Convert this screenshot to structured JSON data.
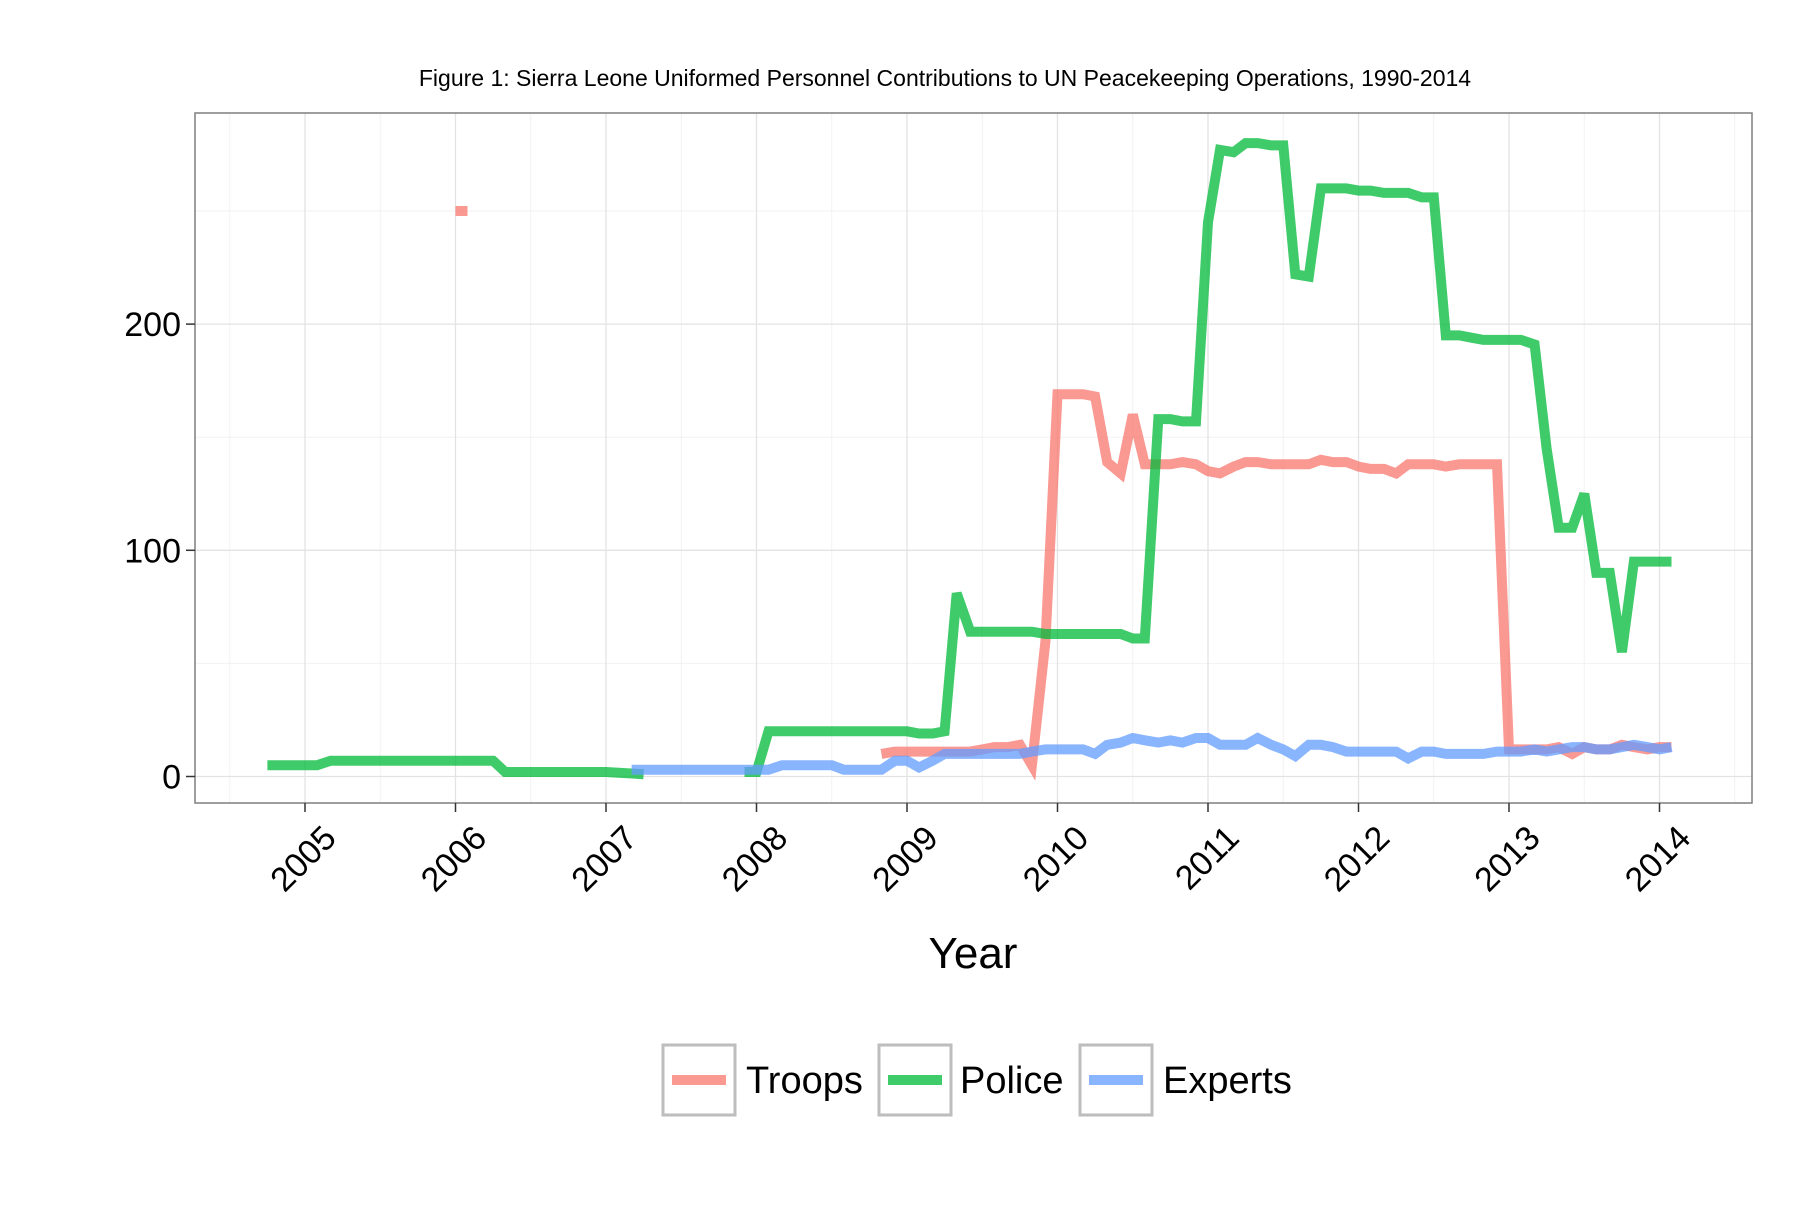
{
  "chart_data": {
    "type": "line",
    "title": "Figure 1: Sierra Leone Uniformed Personnel Contributions to UN Peacekeeping Operations, 1990-2014",
    "xlabel": "Year",
    "ylabel": "",
    "x_ticks": [
      "2005",
      "2006",
      "2007",
      "2008",
      "2009",
      "2010",
      "2011",
      "2012",
      "2013",
      "2014"
    ],
    "y_ticks": [
      0,
      100,
      200
    ],
    "xlim": [
      2004.5,
      2014.65
    ],
    "ylim": [
      -12,
      295
    ],
    "grid": true,
    "legend_position": "bottom",
    "colors": {
      "Troops": "#F8766D",
      "Police": "#00BA38",
      "Experts": "#619CFF"
    },
    "series": [
      {
        "name": "Troops",
        "x": [
          2008.83,
          2008.92,
          2009.0,
          2009.08,
          2009.17,
          2009.25,
          2009.33,
          2009.42,
          2009.5,
          2009.58,
          2009.67,
          2009.75,
          2009.83,
          2009.92,
          2010.0,
          2010.08,
          2010.17,
          2010.25,
          2010.33,
          2010.42,
          2010.5,
          2010.58,
          2010.67,
          2010.75,
          2010.83,
          2010.92,
          2011.0,
          2011.08,
          2011.17,
          2011.25,
          2011.33,
          2011.42,
          2011.5,
          2011.58,
          2011.67,
          2011.75,
          2011.83,
          2011.92,
          2012.0,
          2012.08,
          2012.17,
          2012.25,
          2012.33,
          2012.42,
          2012.5,
          2012.58,
          2012.67,
          2012.75,
          2012.83,
          2012.92,
          2013.0,
          2013.08,
          2013.17,
          2013.25,
          2013.33,
          2013.42,
          2013.5,
          2013.58,
          2013.67,
          2013.75,
          2013.83,
          2013.92,
          2014.0,
          2014.08
        ],
        "values": [
          10,
          11,
          11,
          11,
          11,
          11,
          11,
          11,
          12,
          13,
          13,
          14,
          5,
          60,
          169,
          169,
          169,
          168,
          139,
          134,
          160,
          138,
          138,
          138,
          139,
          138,
          135,
          134,
          137,
          139,
          139,
          138,
          138,
          138,
          138,
          140,
          139,
          139,
          137,
          136,
          136,
          134,
          138,
          138,
          138,
          137,
          138,
          138,
          138,
          138,
          12,
          12,
          12,
          12,
          13,
          10,
          13,
          12,
          12,
          14,
          13,
          12,
          13,
          13
        ]
      },
      {
        "name": "Troops",
        "x": [
          2006.0,
          2006.08
        ],
        "values": [
          250,
          250
        ]
      },
      {
        "name": "Police",
        "x": [
          2004.75,
          2004.83,
          2005.0,
          2005.08,
          2005.17,
          2005.25,
          2005.5,
          2005.75,
          2006.0,
          2006.17,
          2006.25,
          2006.33,
          2006.42,
          2006.67,
          2007.0,
          2007.25
        ],
        "values": [
          5,
          5,
          5,
          5,
          7,
          7,
          7,
          7,
          7,
          7,
          7,
          2,
          2,
          2,
          2,
          1
        ]
      },
      {
        "name": "Police",
        "x": [
          2007.92,
          2008.0,
          2008.08,
          2008.17,
          2008.5,
          2008.75,
          2009.0,
          2009.08,
          2009.17,
          2009.25,
          2009.33,
          2009.42,
          2009.5,
          2009.58,
          2009.67,
          2009.75,
          2009.83,
          2009.92,
          2010.0,
          2010.08,
          2010.17,
          2010.25,
          2010.33,
          2010.42,
          2010.5,
          2010.58,
          2010.67,
          2010.75,
          2010.83,
          2010.92,
          2011.0,
          2011.08,
          2011.17,
          2011.25,
          2011.33,
          2011.42,
          2011.5,
          2011.58,
          2011.67,
          2011.75,
          2011.83,
          2011.92,
          2012.0,
          2012.08,
          2012.17,
          2012.25,
          2012.33,
          2012.42,
          2012.5,
          2012.58,
          2012.67,
          2012.75,
          2012.83,
          2012.92,
          2013.0,
          2013.08,
          2013.17,
          2013.25,
          2013.33,
          2013.42,
          2013.5,
          2013.58,
          2013.67,
          2013.75,
          2013.83,
          2013.92,
          2014.0,
          2014.08
        ],
        "values": [
          2,
          2,
          20,
          20,
          20,
          20,
          20,
          19,
          19,
          20,
          81,
          64,
          64,
          64,
          64,
          64,
          64,
          63,
          63,
          63,
          63,
          63,
          63,
          63,
          61,
          61,
          158,
          158,
          157,
          157,
          245,
          277,
          276,
          280,
          280,
          279,
          279,
          222,
          221,
          260,
          260,
          260,
          259,
          259,
          258,
          258,
          258,
          256,
          256,
          195,
          195,
          194,
          193,
          193,
          193,
          193,
          191,
          145,
          110,
          110,
          125,
          90,
          90,
          55,
          95,
          95,
          95,
          95
        ]
      },
      {
        "name": "Experts",
        "x": [
          2007.17,
          2007.5,
          2007.75,
          2007.92,
          2008.0,
          2008.08,
          2008.17,
          2008.33,
          2008.42,
          2008.5,
          2008.58,
          2008.67,
          2008.75,
          2008.83,
          2008.92,
          2009.0,
          2009.08,
          2009.17,
          2009.25,
          2009.33,
          2009.42,
          2009.5,
          2009.58,
          2009.67,
          2009.75,
          2009.83,
          2009.92,
          2010.0,
          2010.08,
          2010.17,
          2010.25,
          2010.33,
          2010.42,
          2010.5,
          2010.58,
          2010.67,
          2010.75,
          2010.83,
          2010.92,
          2011.0,
          2011.08,
          2011.17,
          2011.25,
          2011.33,
          2011.42,
          2011.5,
          2011.58,
          2011.67,
          2011.75,
          2011.83,
          2011.92,
          2012.0,
          2012.08,
          2012.17,
          2012.25,
          2012.33,
          2012.42,
          2012.5,
          2012.58,
          2012.67,
          2012.75,
          2012.83,
          2012.92,
          2013.0,
          2013.08,
          2013.17,
          2013.25,
          2013.33,
          2013.42,
          2013.5,
          2013.58,
          2013.67,
          2013.75,
          2013.83,
          2013.92,
          2014.0,
          2014.08
        ],
        "values": [
          3,
          3,
          3,
          3,
          3,
          3,
          5,
          5,
          5,
          5,
          3,
          3,
          3,
          3,
          7,
          7,
          4,
          7,
          10,
          10,
          10,
          10,
          10,
          10,
          10,
          11,
          12,
          12,
          12,
          12,
          10,
          14,
          15,
          17,
          16,
          15,
          16,
          15,
          17,
          17,
          14,
          14,
          14,
          17,
          14,
          12,
          9,
          14,
          14,
          13,
          11,
          11,
          11,
          11,
          11,
          8,
          11,
          11,
          10,
          10,
          10,
          10,
          11,
          11,
          11,
          12,
          11,
          12,
          13,
          13,
          12,
          12,
          13,
          14,
          13,
          12,
          13
        ]
      }
    ]
  }
}
